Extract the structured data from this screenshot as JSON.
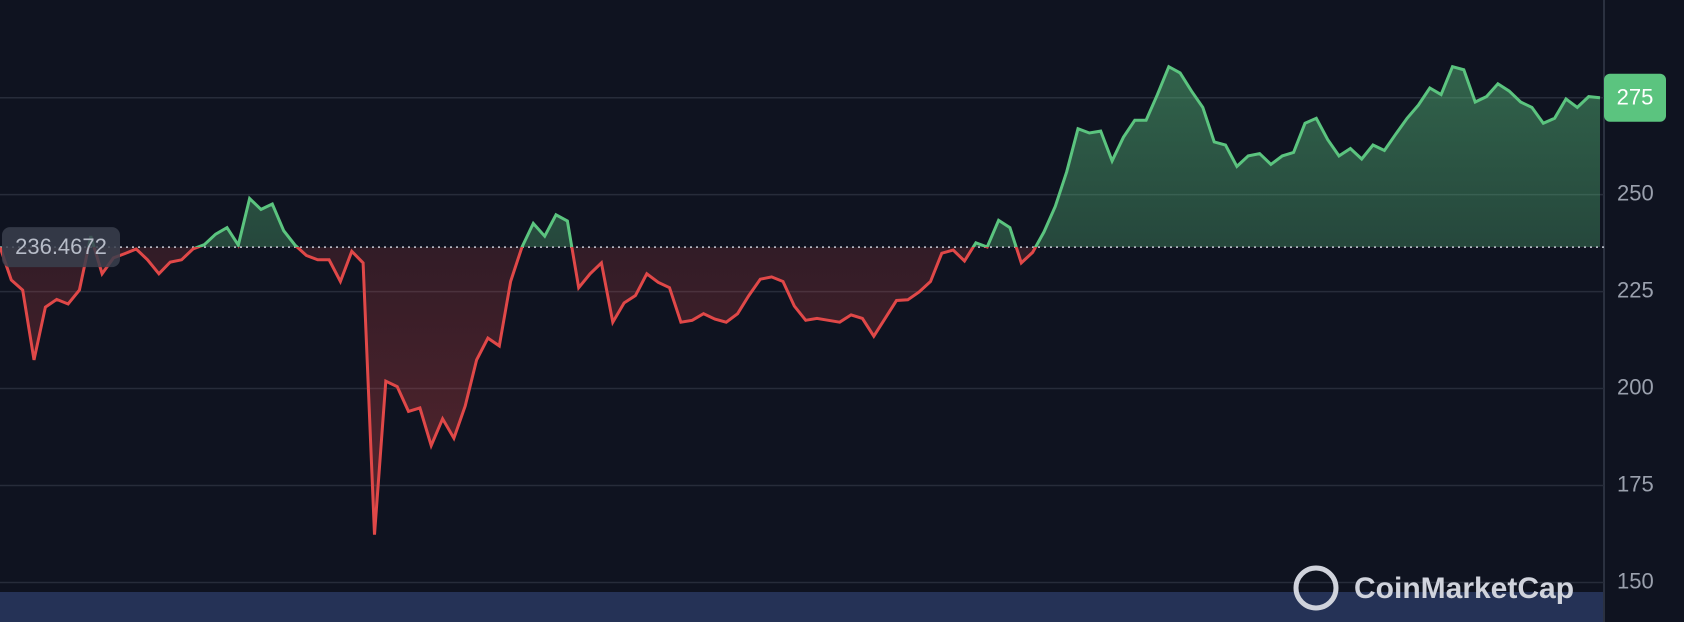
{
  "chart_data": {
    "type": "baseline-area",
    "values": [
      236.5,
      228,
      225.4,
      207.4,
      221,
      223,
      221.8,
      225.4,
      239.3,
      229.6,
      233.7,
      234.8,
      236,
      233.2,
      229.6,
      232.6,
      233.2,
      236,
      237.1,
      239.8,
      241.5,
      237,
      249,
      246.2,
      247.6,
      240.7,
      237,
      234.3,
      233.2,
      233.2,
      227.6,
      235.4,
      232.4,
      162.3,
      201.9,
      200.5,
      194.1,
      195,
      185.3,
      192.2,
      187.2,
      195.5,
      207.4,
      213,
      211,
      227.6,
      236.5,
      242.6,
      239.3,
      244.8,
      243.2,
      226,
      229.6,
      232.4,
      217.1,
      222.1,
      224,
      229.6,
      227.4,
      226,
      217.1,
      217.6,
      219.3,
      217.9,
      217.1,
      219.3,
      224,
      228.2,
      228.8,
      227.6,
      221.3,
      217.6,
      218.1,
      217.6,
      217.1,
      219,
      218.1,
      213.5,
      218.1,
      222.7,
      222.9,
      224.9,
      227.6,
      234.9,
      235.7,
      232.9,
      237.6,
      236.5,
      243.4,
      241.5,
      232.4,
      235.1,
      240.4,
      247,
      255.9,
      267,
      265.9,
      266.4,
      258.7,
      264.8,
      269.2,
      269.2,
      275.8,
      283,
      281.4,
      276.7,
      272.5,
      263.6,
      262.8,
      257.3,
      260,
      260.6,
      257.8,
      260,
      260.9,
      268.4,
      269.7,
      264.2,
      260,
      261.9,
      259.2,
      262.8,
      261.4,
      265.6,
      269.7,
      273.1,
      277.5,
      275.8,
      283,
      282.2,
      273.9,
      275.3,
      278.6,
      276.7,
      273.9,
      272.5,
      268.4,
      269.7,
      274.7,
      272.5,
      275.3,
      275
    ],
    "baseline": {
      "value": 236.4672,
      "label": "236.4672"
    },
    "price_label": 275,
    "up_color": "#5bc47f",
    "down_color": "#e04848",
    "ylim": [
      139.8,
      300.2
    ],
    "yticks": [
      150,
      175,
      200,
      225,
      250
    ],
    "grid": true,
    "watermark": "CoinMarketCap"
  }
}
